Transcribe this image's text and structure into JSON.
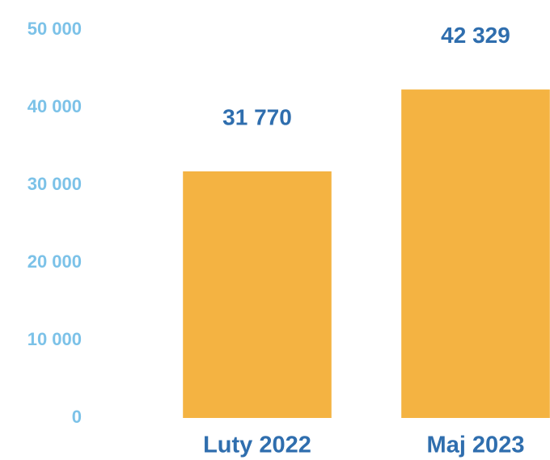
{
  "chart_data": {
    "type": "bar",
    "categories": [
      "Luty 2022",
      "Maj 2023"
    ],
    "values": [
      31770,
      42329
    ],
    "value_labels": [
      "31 770",
      "42 329"
    ],
    "color": "#f4b342",
    "ylim": [
      0,
      50000
    ],
    "yticks": [
      0,
      {
        "value": 10000,
        "label": "10 000"
      },
      {
        "value": 20000,
        "label": "20 000"
      },
      {
        "value": 30000,
        "label": "30 000"
      },
      {
        "value": 40000,
        "label": "40 000"
      },
      {
        "value": 50000,
        "label": "50 000"
      }
    ],
    "grid": false
  }
}
